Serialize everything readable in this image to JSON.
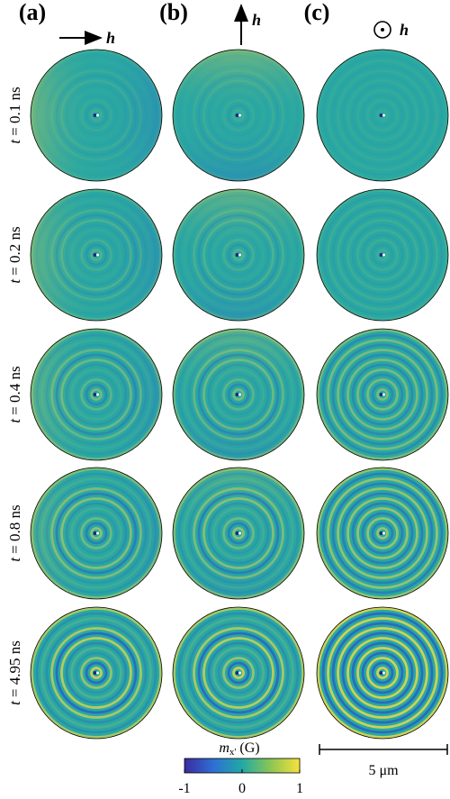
{
  "panels": {
    "headers": [
      "(a)",
      "(b)",
      "(c)"
    ],
    "field_symbol": "h",
    "time_symbol": "t",
    "time_labels": [
      "= 0.1 ns",
      "= 0.2 ns",
      "= 0.4 ns",
      "= 0.8 ns",
      "= 4.95 ns"
    ]
  },
  "colorbar": {
    "symbol": "m",
    "subscript": "x'",
    "unit": "(G)",
    "lim": [
      -1,
      1
    ],
    "ticks": [
      -1,
      0,
      1
    ]
  },
  "scale_bar": {
    "label": "5 μm"
  }
}
